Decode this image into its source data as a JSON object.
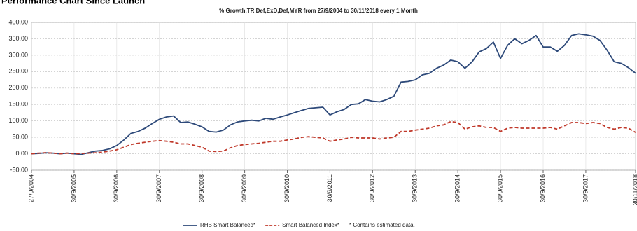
{
  "chart_data": {
    "type": "line",
    "title": "Performance Chart Since Launch",
    "subtitle": "% Growth,TR Def,ExD,Def,MYR from 27/9/2004 to 30/11/2018 every 1 Month",
    "legend_note": "* Contains estimated data.",
    "categories": [
      "27/9/2004",
      null,
      null,
      null,
      null,
      null,
      "30/9/2005",
      null,
      null,
      null,
      null,
      null,
      "30/9/2006",
      null,
      null,
      null,
      null,
      null,
      "30/9/2007",
      null,
      null,
      null,
      null,
      null,
      "30/9/2008",
      null,
      null,
      null,
      null,
      null,
      "30/9/2009",
      null,
      null,
      null,
      null,
      null,
      "30/9/2010",
      null,
      null,
      null,
      null,
      null,
      "30/9/2011",
      null,
      null,
      null,
      null,
      null,
      "30/9/2012",
      null,
      null,
      null,
      null,
      null,
      "30/9/2013",
      null,
      null,
      null,
      null,
      null,
      "30/9/2014",
      null,
      null,
      null,
      null,
      null,
      "30/9/2015",
      null,
      null,
      null,
      null,
      null,
      "30/9/2016",
      null,
      null,
      null,
      null,
      null,
      "30/9/2017",
      null,
      null,
      null,
      null,
      null,
      null,
      "30/11/2018"
    ],
    "series": [
      {
        "name": "RHB Smart Balanced*",
        "color": "#2e4a7a",
        "dashed": false,
        "values": [
          0,
          1,
          3,
          2,
          0,
          2,
          0,
          -2,
          3,
          8,
          10,
          15,
          25,
          42,
          62,
          68,
          78,
          92,
          105,
          112,
          115,
          95,
          97,
          90,
          82,
          68,
          66,
          72,
          88,
          97,
          100,
          102,
          100,
          108,
          105,
          112,
          118,
          125,
          132,
          138,
          140,
          142,
          118,
          128,
          135,
          150,
          152,
          165,
          160,
          158,
          165,
          175,
          218,
          220,
          225,
          240,
          245,
          260,
          270,
          285,
          280,
          260,
          280,
          310,
          320,
          340,
          290,
          330,
          350,
          335,
          345,
          360,
          325,
          325,
          312,
          330,
          360,
          365,
          362,
          358,
          345,
          315,
          280,
          275,
          262,
          245
        ]
      },
      {
        "name": "Smart Balanced Index*",
        "color": "#c0392b",
        "dashed": true,
        "values": [
          0,
          2,
          3,
          2,
          0,
          2,
          0,
          1,
          2,
          3,
          5,
          8,
          12,
          20,
          28,
          32,
          35,
          38,
          40,
          38,
          35,
          30,
          30,
          25,
          20,
          8,
          7,
          8,
          18,
          25,
          28,
          30,
          32,
          35,
          38,
          38,
          42,
          45,
          50,
          52,
          50,
          48,
          38,
          42,
          45,
          50,
          48,
          48,
          48,
          45,
          48,
          50,
          68,
          68,
          72,
          75,
          78,
          85,
          88,
          98,
          95,
          75,
          82,
          85,
          80,
          80,
          68,
          78,
          80,
          78,
          78,
          78,
          78,
          80,
          75,
          85,
          95,
          95,
          92,
          95,
          92,
          80,
          75,
          80,
          78,
          65
        ]
      }
    ],
    "ylim": [
      -50,
      400
    ],
    "yticks": [
      {
        "value": -50,
        "label": "-50.00"
      },
      {
        "value": 0,
        "label": "0.00"
      },
      {
        "value": 50,
        "label": "50.00"
      },
      {
        "value": 100,
        "label": "100.00"
      },
      {
        "value": 150,
        "label": "150.00"
      },
      {
        "value": 200,
        "label": "200.00"
      },
      {
        "value": 250,
        "label": "250.00"
      },
      {
        "value": 300,
        "label": "300.00"
      },
      {
        "value": 350,
        "label": "350.00"
      },
      {
        "value": 400,
        "label": "400.00"
      }
    ],
    "grid": true
  }
}
